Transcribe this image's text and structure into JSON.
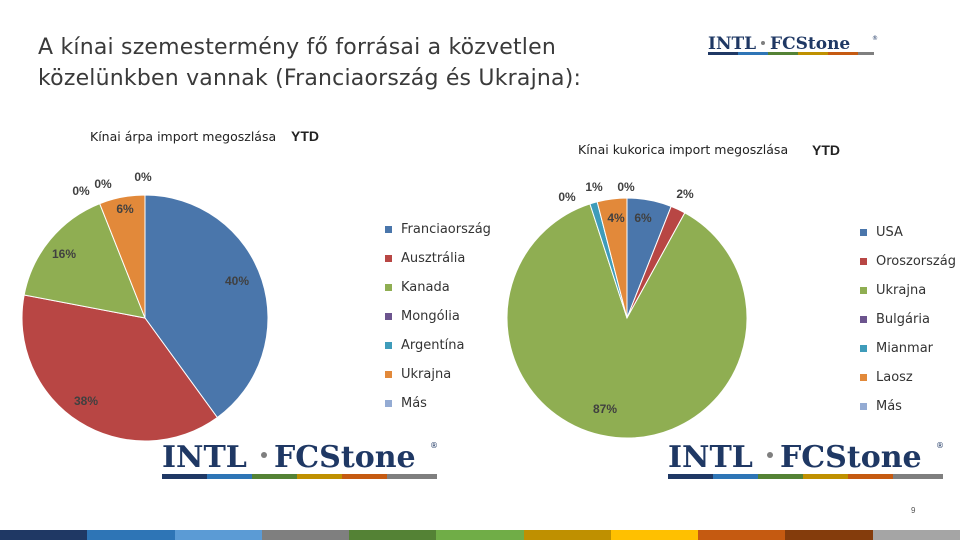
{
  "slide": {
    "title_line1": "A kínai szemestermény fő forrásai a közvetlen",
    "title_line2": "közelünkben vannak (Franciaország és Ukrajna):",
    "page_number": "9"
  },
  "logo": {
    "part1": "INTL",
    "part2": "FCStone",
    "mark": "®"
  },
  "chart_data": [
    {
      "type": "pie",
      "title": "Kínai árpa import megoszlása",
      "title_suffix": "YTD",
      "categories": [
        "Franciaország",
        "Ausztrália",
        "Kanada",
        "Mongólia",
        "Argentína",
        "Ukrajna",
        "Más"
      ],
      "values": [
        40,
        38,
        16,
        0,
        0,
        6,
        0
      ],
      "labels": [
        "40%",
        "38%",
        "16%",
        "0%",
        "0%",
        "6%",
        "0%"
      ],
      "colors": [
        "#4a76ab",
        "#b84644",
        "#8fae52",
        "#6c548e",
        "#3f9cba",
        "#e2893a",
        "#94abd3"
      ],
      "legend_position": "right"
    },
    {
      "type": "pie",
      "title": "Kínai kukorica import megoszlása",
      "title_suffix": "YTD",
      "categories": [
        "USA",
        "Oroszország",
        "Ukrajna",
        "Bulgária",
        "Mianmar",
        "Laosz",
        "Más"
      ],
      "values": [
        6,
        2,
        87,
        0,
        1,
        4,
        0
      ],
      "labels": [
        "6%",
        "2%",
        "87%",
        "0%",
        "1%",
        "4%",
        "0%"
      ],
      "colors": [
        "#4a76ab",
        "#b84644",
        "#8fae52",
        "#6c548e",
        "#3f9cba",
        "#e2893a",
        "#94abd3"
      ],
      "legend_position": "right"
    }
  ],
  "footer_colors": [
    "#1f3864",
    "#2e75b6",
    "#5b9bd5",
    "#7f7f7f",
    "#548235",
    "#70ad47",
    "#bf9000",
    "#ffc000",
    "#c55a11",
    "#843c0c",
    "#a5a5a5"
  ]
}
